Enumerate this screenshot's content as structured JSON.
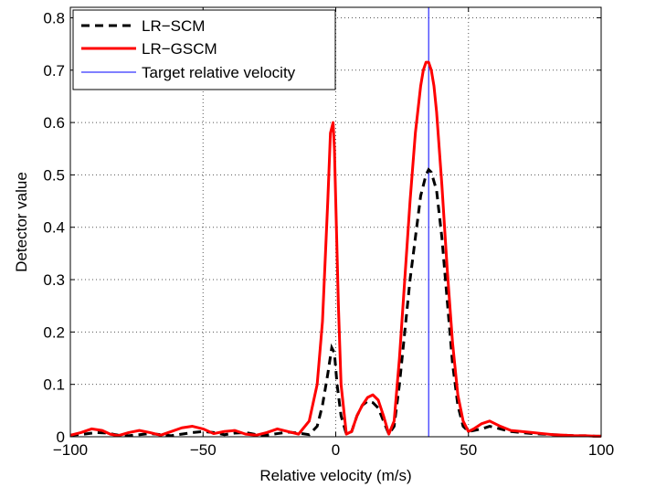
{
  "chart_data": {
    "type": "line",
    "title": "",
    "xlabel": "Relative velocity (m/s)",
    "ylabel": "Detector value",
    "xlim": [
      -100,
      100
    ],
    "ylim": [
      0,
      0.82
    ],
    "xticks": [
      -100,
      -50,
      0,
      50,
      100
    ],
    "xtick_labels": [
      "−100",
      "−50",
      "0",
      "50",
      "100"
    ],
    "yticks": [
      0,
      0.1,
      0.2,
      0.3,
      0.4,
      0.5,
      0.6,
      0.7,
      0.8
    ],
    "ytick_labels": [
      "0",
      "0.1",
      "0.2",
      "0.3",
      "0.4",
      "0.5",
      "0.6",
      "0.7",
      "0.8"
    ],
    "grid": true,
    "legend_position": "top-left",
    "series": [
      {
        "name": "LR−SCM",
        "color": "#000000",
        "style": "dashed",
        "x": [
          -100,
          -95,
          -90,
          -86,
          -82,
          -78,
          -74,
          -70,
          -66,
          -62,
          -58,
          -54,
          -50,
          -46,
          -42,
          -38,
          -34,
          -30,
          -26,
          -22,
          -18,
          -14,
          -10,
          -7,
          -5,
          -3,
          -1.5,
          -0.5,
          0.5,
          2,
          4,
          6,
          8,
          10,
          12,
          14,
          16,
          18,
          20,
          22,
          24,
          26,
          28,
          30,
          32,
          34,
          35,
          36,
          38,
          40,
          42,
          44,
          46,
          48,
          50,
          52,
          55,
          58,
          62,
          66,
          70,
          74,
          78,
          82,
          86,
          90,
          94,
          98,
          100
        ],
        "y": [
          0.003,
          0.005,
          0.008,
          0.007,
          0.003,
          0.002,
          0.004,
          0.006,
          0.004,
          0.002,
          0.005,
          0.008,
          0.01,
          0.008,
          0.004,
          0.007,
          0.008,
          0.004,
          0.003,
          0.006,
          0.009,
          0.007,
          0.004,
          0.02,
          0.06,
          0.12,
          0.17,
          0.16,
          0.1,
          0.04,
          0.005,
          0.01,
          0.04,
          0.06,
          0.068,
          0.065,
          0.055,
          0.03,
          0.005,
          0.02,
          0.1,
          0.2,
          0.3,
          0.38,
          0.46,
          0.5,
          0.51,
          0.505,
          0.47,
          0.38,
          0.26,
          0.14,
          0.06,
          0.02,
          0.01,
          0.012,
          0.015,
          0.02,
          0.015,
          0.01,
          0.008,
          0.006,
          0.005,
          0.004,
          0.003,
          0.002,
          0.002,
          0.001,
          0.001
        ]
      },
      {
        "name": "LR−GSCM",
        "color": "#ff0000",
        "style": "solid",
        "x": [
          -100,
          -96,
          -92,
          -88,
          -85,
          -82,
          -78,
          -74,
          -70,
          -66,
          -62,
          -58,
          -54,
          -50,
          -46,
          -42,
          -38,
          -34,
          -30,
          -26,
          -22,
          -18,
          -14,
          -10,
          -7,
          -5,
          -3,
          -2,
          -1,
          -0.5,
          0,
          1,
          2,
          4,
          6,
          8,
          10,
          12,
          14,
          16,
          18,
          20,
          22,
          24,
          26,
          28,
          30,
          32,
          33,
          34,
          35,
          36,
          37,
          38,
          40,
          42,
          44,
          46,
          48,
          50,
          52,
          55,
          58,
          62,
          66,
          70,
          74,
          78,
          82,
          86,
          90,
          94,
          98,
          100
        ],
        "y": [
          0.003,
          0.008,
          0.015,
          0.012,
          0.005,
          0.002,
          0.008,
          0.012,
          0.008,
          0.003,
          0.01,
          0.017,
          0.02,
          0.015,
          0.006,
          0.01,
          0.012,
          0.005,
          0.003,
          0.008,
          0.015,
          0.01,
          0.005,
          0.03,
          0.1,
          0.22,
          0.45,
          0.58,
          0.6,
          0.55,
          0.45,
          0.25,
          0.1,
          0.005,
          0.01,
          0.04,
          0.06,
          0.075,
          0.08,
          0.07,
          0.04,
          0.005,
          0.03,
          0.15,
          0.3,
          0.45,
          0.58,
          0.67,
          0.7,
          0.715,
          0.715,
          0.7,
          0.67,
          0.62,
          0.48,
          0.32,
          0.18,
          0.08,
          0.03,
          0.01,
          0.015,
          0.025,
          0.03,
          0.02,
          0.012,
          0.01,
          0.008,
          0.006,
          0.004,
          0.003,
          0.002,
          0.002,
          0.001,
          0.001
        ]
      },
      {
        "name": "Target relative velocity",
        "color": "#0000ff",
        "style": "vline",
        "x": [
          35,
          35
        ],
        "y": [
          0,
          0.82
        ]
      }
    ]
  }
}
